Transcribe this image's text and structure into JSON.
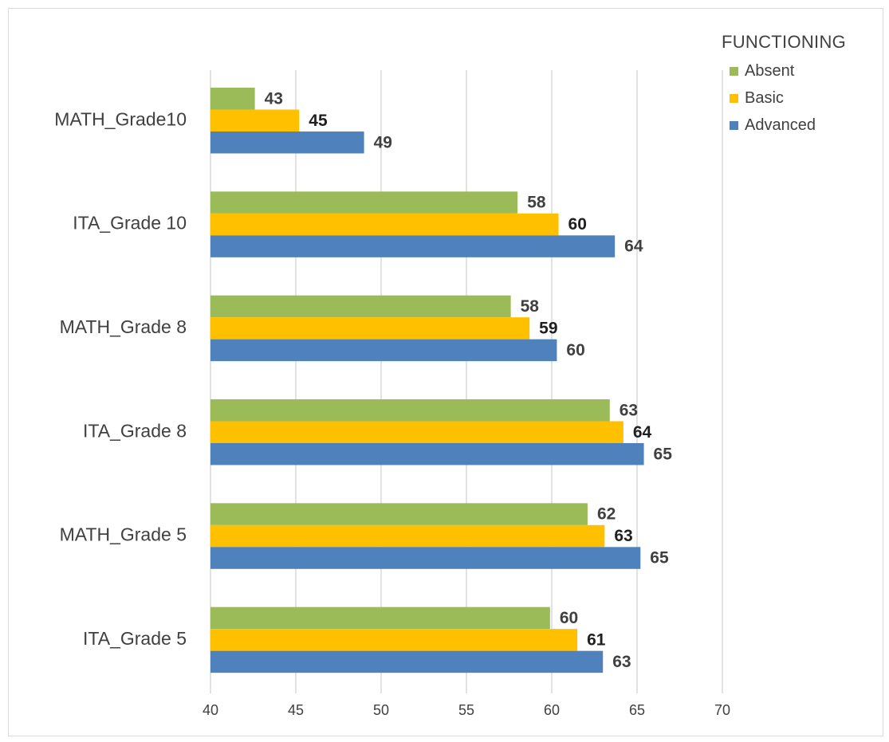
{
  "colors": {
    "Absent": "#9bbb59",
    "Basic": "#ffc000",
    "Advanced": "#4f81bd",
    "grid": "#d9d9d9",
    "text": "#404040"
  },
  "legend": {
    "title": "FUNCTIONING",
    "items": [
      {
        "label": "Absent",
        "color": "#9bbb59"
      },
      {
        "label": "Basic",
        "color": "#ffc000"
      },
      {
        "label": "Advanced",
        "color": "#4f81bd"
      }
    ]
  },
  "chart_data": {
    "type": "bar",
    "orientation": "horizontal",
    "categories": [
      "MATH_Grade10",
      "ITA_Grade 10",
      "MATH_Grade 8",
      "ITA_Grade 8",
      "MATH_Grade 5",
      "ITA_Grade 5"
    ],
    "series": [
      {
        "name": "Absent",
        "values": [
          42.6,
          58.0,
          57.6,
          63.4,
          62.1,
          59.9
        ],
        "labels": [
          "43",
          "58",
          "58",
          "63",
          "62",
          "60"
        ]
      },
      {
        "name": "Basic",
        "values": [
          45.2,
          60.4,
          58.7,
          64.2,
          63.1,
          61.5
        ],
        "labels": [
          "45",
          "60",
          "59",
          "64",
          "63",
          "61"
        ]
      },
      {
        "name": "Advanced",
        "values": [
          49.0,
          63.7,
          60.3,
          65.4,
          65.2,
          63.0
        ],
        "labels": [
          "49",
          "64",
          "60",
          "65",
          "65",
          "63"
        ]
      }
    ],
    "xlim": [
      40,
      70
    ],
    "xticks": [
      "40",
      "45",
      "50",
      "55",
      "60",
      "65",
      "70"
    ],
    "grid": "vertical",
    "legend_position": "top-right",
    "title": "",
    "xlabel": "",
    "ylabel": ""
  }
}
